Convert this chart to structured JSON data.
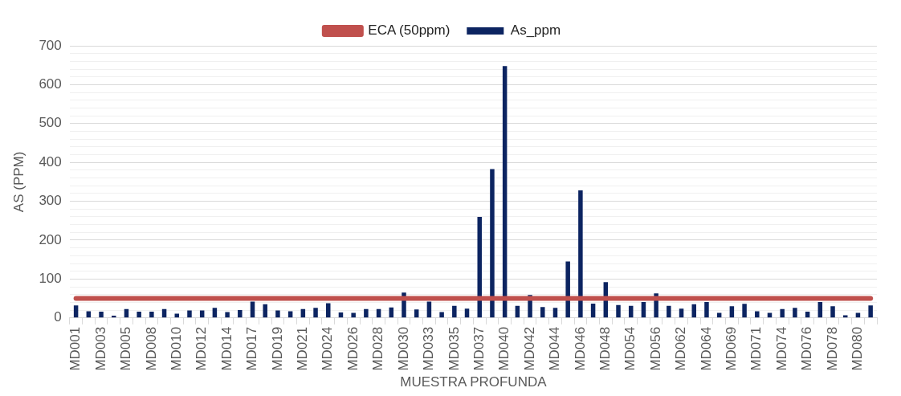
{
  "chart_data": {
    "type": "bar",
    "xlabel": "MUESTRA PROFUNDA",
    "ylabel": "AS (PPM)",
    "categories": [
      "MD001",
      null,
      "MD003",
      null,
      "MD005",
      null,
      "MD008",
      null,
      "MD010",
      null,
      "MD012",
      null,
      "MD014",
      null,
      "MD017",
      null,
      "MD019",
      null,
      "MD021",
      null,
      "MD024",
      null,
      "MD026",
      null,
      "MD028",
      null,
      "MD030",
      null,
      "MD033",
      null,
      "MD035",
      null,
      "MD037",
      null,
      "MD040",
      null,
      "MD042",
      null,
      "MD044",
      null,
      "MD046",
      null,
      "MD048",
      null,
      "MD054",
      null,
      "MD056",
      null,
      "MD062",
      null,
      "MD064",
      null,
      "MD069",
      null,
      "MD071",
      null,
      "MD074",
      null,
      "MD076",
      null,
      "MD078",
      null,
      "MD080",
      null
    ],
    "series": [
      {
        "name": "As_ppm",
        "color": "#0c2461",
        "values": [
          32,
          17,
          16,
          6,
          23,
          16,
          16,
          23,
          11,
          19,
          19,
          26,
          15,
          20,
          42,
          35,
          19,
          17,
          23,
          26,
          38,
          14,
          13,
          23,
          23,
          27,
          65,
          22,
          42,
          15,
          31,
          24,
          260,
          383,
          648,
          31,
          59,
          28,
          26,
          145,
          328,
          37,
          92,
          33,
          31,
          41,
          63,
          31,
          24,
          35,
          41,
          13,
          30,
          36,
          17,
          13,
          23,
          26,
          16,
          41,
          30,
          7,
          13,
          32
        ]
      },
      {
        "name": "ECA (50ppm)",
        "type": "line",
        "color": "#c0504d",
        "line_style": "solid",
        "values": [
          50,
          50,
          50,
          50,
          50,
          50,
          50,
          50,
          50,
          50,
          50,
          50,
          50,
          50,
          50,
          50,
          50,
          50,
          50,
          50,
          50,
          50,
          50,
          50,
          50,
          50,
          50,
          50,
          50,
          50,
          50,
          50,
          50,
          50,
          50,
          50,
          50,
          50,
          50,
          50,
          50,
          50,
          50,
          50,
          50,
          50,
          50,
          50,
          50,
          50,
          50,
          50,
          50,
          50,
          50,
          50,
          50,
          50,
          50,
          50,
          50,
          50,
          50,
          50
        ]
      }
    ],
    "ylim": [
      0,
      700
    ],
    "yticks": [
      0,
      {
        "value": 20,
        "label": null
      },
      {
        "value": 40,
        "label": null
      },
      {
        "value": 60,
        "label": null
      },
      {
        "value": 80,
        "label": null
      },
      100,
      {
        "value": 120,
        "label": null
      },
      {
        "value": 140,
        "label": null
      },
      {
        "value": 160,
        "label": null
      },
      {
        "value": 180,
        "label": null
      },
      200,
      {
        "value": 220,
        "label": null
      },
      {
        "value": 240,
        "label": null
      },
      {
        "value": 260,
        "label": null
      },
      {
        "value": 280,
        "label": null
      },
      300,
      {
        "value": 320,
        "label": null
      },
      {
        "value": 340,
        "label": null
      },
      {
        "value": 360,
        "label": null
      },
      {
        "value": 380,
        "label": null
      },
      400,
      {
        "value": 420,
        "label": null
      },
      {
        "value": 440,
        "label": null
      },
      {
        "value": 460,
        "label": null
      },
      {
        "value": 480,
        "label": null
      },
      500,
      {
        "value": 520,
        "label": null
      },
      {
        "value": 540,
        "label": null
      },
      {
        "value": 560,
        "label": null
      },
      {
        "value": 580,
        "label": null
      },
      600,
      {
        "value": 620,
        "label": null
      },
      {
        "value": 640,
        "label": null
      },
      {
        "value": 660,
        "label": null
      },
      {
        "value": 680,
        "label": null
      },
      700
    ],
    "grid": "y",
    "legend": "top"
  }
}
